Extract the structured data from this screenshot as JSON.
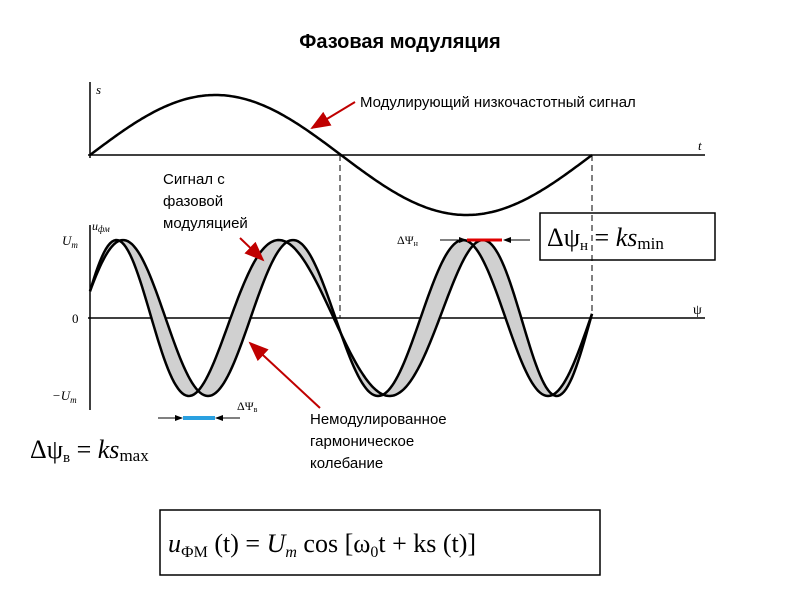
{
  "title": "Фазовая модуляция",
  "top_plot": {
    "y_label": "s",
    "x_label": "t",
    "annotation": "Модулирующий низкочастотный сигнал"
  },
  "bottom_plot": {
    "y_label": "u",
    "y_label_sub": "фм",
    "tick_top": "U",
    "tick_top_sub": "m",
    "tick_zero": "0",
    "tick_bottom": "−U",
    "tick_bottom_sub": "m",
    "x_label": "ψ",
    "shift_top": "ΔΨ",
    "shift_top_sub": "н",
    "shift_bottom": "ΔΨ",
    "shift_bottom_sub": "в",
    "annotation_modulated": [
      "Сигнал с",
      "фазовой",
      "модуляцией"
    ],
    "annotation_unmodulated": [
      "Немодулированное",
      "гармоническое",
      "колебание"
    ]
  },
  "formula_min": {
    "lhs": "Δψ",
    "lhs_sub": "н",
    "eq": " = ",
    "rhs": "ks",
    "rhs_sub": "min"
  },
  "formula_max": {
    "lhs": "Δψ",
    "lhs_sub": "в",
    "eq": " = ",
    "rhs": "ks",
    "rhs_sub": "max"
  },
  "formula_main": {
    "u": "u",
    "u_sub": "ФМ",
    "rest1": " (t) = ",
    "U": "U",
    "U_sub": "m",
    "rest2": " cos [ω",
    "w_sub": "0",
    "rest3": "t + ks (t)]"
  }
}
